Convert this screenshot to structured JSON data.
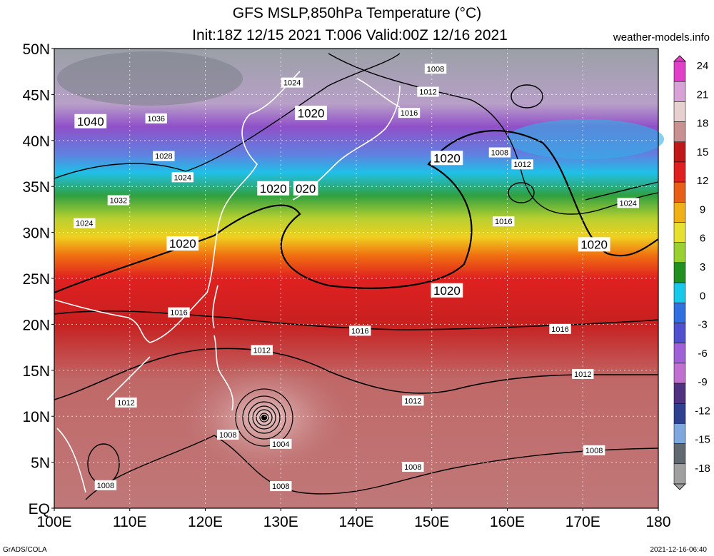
{
  "header": {
    "title_line1": "GFS MSLP,850hPa Temperature (°C)",
    "title_line2": "Init:18Z 12/15 2021 T:006 Valid:00Z 12/16 2021",
    "site": "weather-models.info"
  },
  "footer": {
    "credit_left": "GrADS/COLA",
    "credit_right": "2021-12-16-06:40"
  },
  "map": {
    "lon_range": [
      100,
      180
    ],
    "lat_range": [
      0,
      50
    ],
    "lon_ticks": [
      "100E",
      "110E",
      "120E",
      "130E",
      "140E",
      "150E",
      "160E",
      "170E",
      "180"
    ],
    "lat_ticks": [
      "EQ",
      "5N",
      "10N",
      "15N",
      "20N",
      "25N",
      "30N",
      "35N",
      "40N",
      "45N",
      "50N"
    ],
    "isobar_labels": [
      {
        "text": "1008",
        "lon": 150.5,
        "lat": 47.8,
        "big": false
      },
      {
        "text": "1024",
        "lon": 131.5,
        "lat": 46.3,
        "big": false
      },
      {
        "text": "1012",
        "lon": 149.5,
        "lat": 45.3,
        "big": false
      },
      {
        "text": "1020",
        "lon": 134.0,
        "lat": 43.0,
        "big": true
      },
      {
        "text": "1016",
        "lon": 147.0,
        "lat": 43.0,
        "big": false
      },
      {
        "text": "1040",
        "lon": 104.8,
        "lat": 42.1,
        "big": true
      },
      {
        "text": "1036",
        "lon": 113.5,
        "lat": 42.4,
        "big": false
      },
      {
        "text": "1028",
        "lon": 114.5,
        "lat": 38.3,
        "big": false
      },
      {
        "text": "1020",
        "lon": 152.0,
        "lat": 38.1,
        "big": true
      },
      {
        "text": "1008",
        "lon": 159.0,
        "lat": 38.7,
        "big": false
      },
      {
        "text": "1012",
        "lon": 162.0,
        "lat": 37.4,
        "big": false
      },
      {
        "text": "1024",
        "lon": 117.0,
        "lat": 36.0,
        "big": false
      },
      {
        "text": "1020",
        "lon": 129.0,
        "lat": 34.8,
        "big": true
      },
      {
        "text": "020",
        "lon": 133.3,
        "lat": 34.8,
        "big": true
      },
      {
        "text": "1032",
        "lon": 108.5,
        "lat": 33.5,
        "big": false
      },
      {
        "text": "1024",
        "lon": 176.0,
        "lat": 33.2,
        "big": false
      },
      {
        "text": "1024",
        "lon": 104.0,
        "lat": 31.0,
        "big": false
      },
      {
        "text": "1016",
        "lon": 159.5,
        "lat": 31.2,
        "big": false
      },
      {
        "text": "1020",
        "lon": 117.0,
        "lat": 28.8,
        "big": true
      },
      {
        "text": "1020",
        "lon": 171.5,
        "lat": 28.7,
        "big": true
      },
      {
        "text": "1020",
        "lon": 152.0,
        "lat": 23.7,
        "big": true
      },
      {
        "text": "1016",
        "lon": 116.5,
        "lat": 21.3,
        "big": false
      },
      {
        "text": "1016",
        "lon": 140.5,
        "lat": 19.3,
        "big": false
      },
      {
        "text": "1016",
        "lon": 167.0,
        "lat": 19.5,
        "big": false
      },
      {
        "text": "1012",
        "lon": 127.5,
        "lat": 17.2,
        "big": false
      },
      {
        "text": "1012",
        "lon": 170.0,
        "lat": 14.6,
        "big": false
      },
      {
        "text": "1012",
        "lon": 109.5,
        "lat": 11.5,
        "big": false
      },
      {
        "text": "1012",
        "lon": 147.5,
        "lat": 11.7,
        "big": false
      },
      {
        "text": "1008",
        "lon": 123.0,
        "lat": 8.0,
        "big": false
      },
      {
        "text": "1004",
        "lon": 130.0,
        "lat": 7.0,
        "big": false
      },
      {
        "text": "1008",
        "lon": 171.5,
        "lat": 6.3,
        "big": false
      },
      {
        "text": "1008",
        "lon": 147.5,
        "lat": 4.5,
        "big": false
      },
      {
        "text": "1008",
        "lon": 106.8,
        "lat": 2.5,
        "big": false
      },
      {
        "text": "1008",
        "lon": 130.0,
        "lat": 2.4,
        "big": false
      }
    ]
  },
  "colorbar": {
    "labels": [
      "24",
      "21",
      "18",
      "15",
      "12",
      "9",
      "6",
      "3",
      "0",
      "-3",
      "-6",
      "-9",
      "-12",
      "-15",
      "-18"
    ],
    "colors": [
      "#e040c8",
      "#d8a2d8",
      "#e8d0d0",
      "#c89090",
      "#c01818",
      "#e02020",
      "#e86018",
      "#f0b018",
      "#e8e030",
      "#9ad030",
      "#209020",
      "#18c8e8",
      "#3070e0",
      "#5050d0",
      "#a060d8",
      "#c070d0",
      "#503080",
      "#304090",
      "#80a8e0",
      "#606870",
      "#a0a0a0"
    ]
  }
}
